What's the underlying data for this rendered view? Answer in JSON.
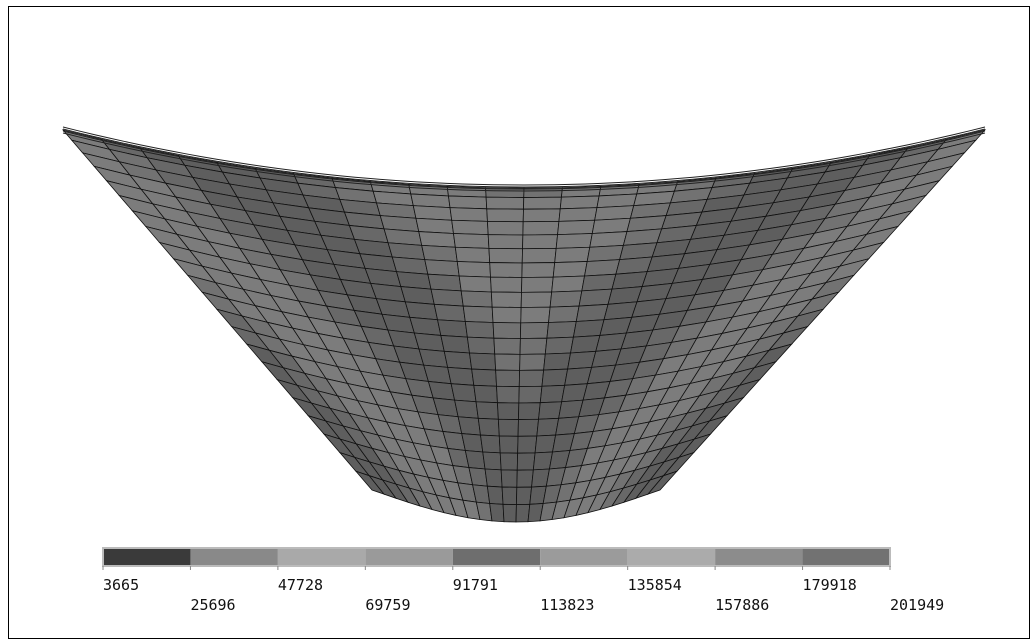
{
  "legend": {
    "labels": [
      "3665",
      "25696",
      "47728",
      "69759",
      "91791",
      "113823",
      "135854",
      "157886",
      "179918",
      "201949"
    ],
    "colors": [
      "#3a3a3a",
      "#898989",
      "#a9a9a9",
      "#9a9a9a",
      "#6e6e6e",
      "#9b9b9b",
      "#ababab",
      "#8c8c8c",
      "#727272"
    ]
  }
}
